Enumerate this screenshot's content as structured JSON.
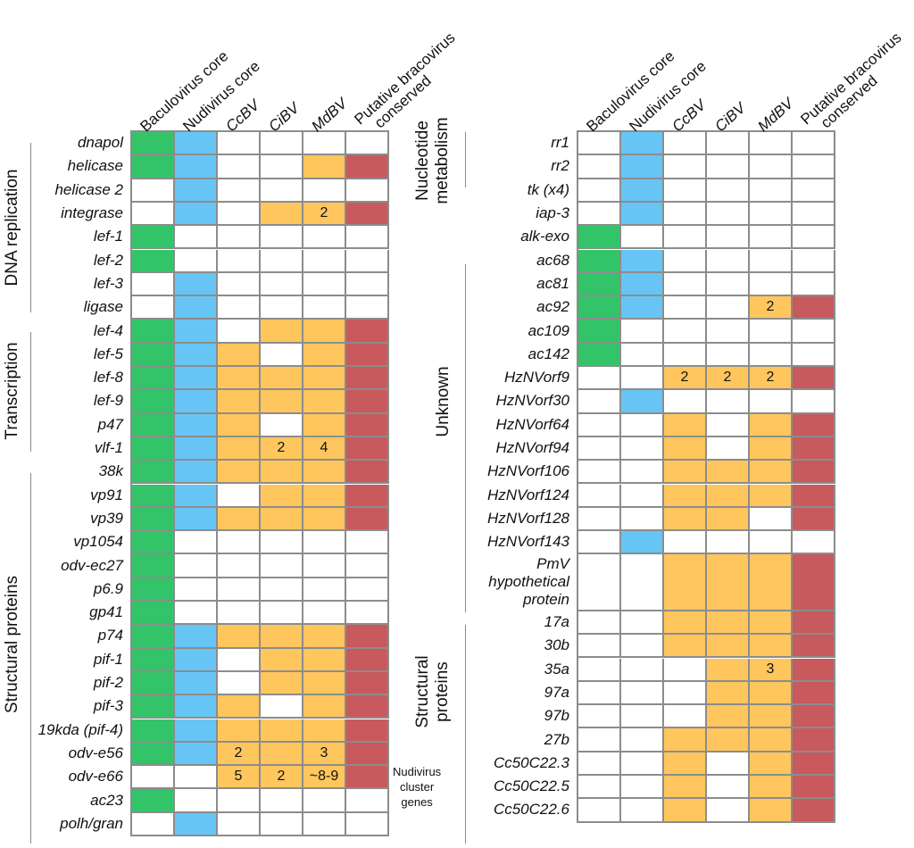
{
  "column_headers": [
    {
      "lines": [
        "Baculovirus core"
      ],
      "italic": false
    },
    {
      "lines": [
        "Nudivirus core"
      ],
      "italic": false
    },
    {
      "lines": [
        "CcBV"
      ],
      "italic": true
    },
    {
      "lines": [
        "CiBV"
      ],
      "italic": true
    },
    {
      "lines": [
        "MdBV"
      ],
      "italic": true
    },
    {
      "lines": [
        "Putative bracovirus",
        "conserved"
      ],
      "italic": false
    }
  ],
  "legend_colors": {
    "G": "#33c46a",
    "B": "#66c5f5",
    "O": "#ffc65e",
    "R": "#c85a5e",
    "W": "#ffffff"
  },
  "left_table": {
    "rows": [
      {
        "gene": "dnapol",
        "cells": [
          "G",
          "B",
          "W",
          "W",
          "W",
          "W"
        ],
        "labels": [
          "",
          "",
          "",
          "",
          "",
          ""
        ]
      },
      {
        "gene": "helicase",
        "cells": [
          "G",
          "B",
          "W",
          "W",
          "O",
          "R"
        ],
        "labels": [
          "",
          "",
          "",
          "",
          "",
          ""
        ]
      },
      {
        "gene": "helicase 2",
        "cells": [
          "W",
          "B",
          "W",
          "W",
          "W",
          "W"
        ],
        "labels": [
          "",
          "",
          "",
          "",
          "",
          ""
        ]
      },
      {
        "gene": "integrase",
        "cells": [
          "W",
          "B",
          "W",
          "O",
          "O",
          "R"
        ],
        "labels": [
          "",
          "",
          "",
          "",
          "2",
          ""
        ]
      },
      {
        "gene": "lef-1",
        "cells": [
          "G",
          "W",
          "W",
          "W",
          "W",
          "W"
        ],
        "labels": [
          "",
          "",
          "",
          "",
          "",
          ""
        ]
      },
      {
        "gene": "lef-2",
        "cells": [
          "G",
          "W",
          "W",
          "W",
          "W",
          "W"
        ],
        "labels": [
          "",
          "",
          "",
          "",
          "",
          ""
        ]
      },
      {
        "gene": "lef-3",
        "cells": [
          "W",
          "B",
          "W",
          "W",
          "W",
          "W"
        ],
        "labels": [
          "",
          "",
          "",
          "",
          "",
          ""
        ]
      },
      {
        "gene": "ligase",
        "cells": [
          "W",
          "B",
          "W",
          "W",
          "W",
          "W"
        ],
        "labels": [
          "",
          "",
          "",
          "",
          "",
          ""
        ]
      },
      {
        "gene": "lef-4",
        "cells": [
          "G",
          "B",
          "W",
          "O",
          "O",
          "R"
        ],
        "labels": [
          "",
          "",
          "",
          "",
          "",
          ""
        ]
      },
      {
        "gene": "lef-5",
        "cells": [
          "G",
          "B",
          "O",
          "W",
          "O",
          "R"
        ],
        "labels": [
          "",
          "",
          "",
          "",
          "",
          ""
        ]
      },
      {
        "gene": "lef-8",
        "cells": [
          "G",
          "B",
          "O",
          "O",
          "O",
          "R"
        ],
        "labels": [
          "",
          "",
          "",
          "",
          "",
          ""
        ]
      },
      {
        "gene": "lef-9",
        "cells": [
          "G",
          "B",
          "O",
          "O",
          "O",
          "R"
        ],
        "labels": [
          "",
          "",
          "",
          "",
          "",
          ""
        ]
      },
      {
        "gene": "p47",
        "cells": [
          "G",
          "B",
          "O",
          "W",
          "O",
          "R"
        ],
        "labels": [
          "",
          "",
          "",
          "",
          "",
          ""
        ]
      },
      {
        "gene": "vlf-1",
        "cells": [
          "G",
          "B",
          "O",
          "O",
          "O",
          "R"
        ],
        "labels": [
          "",
          "",
          "",
          "2",
          "4",
          ""
        ]
      },
      {
        "gene": "38k",
        "cells": [
          "G",
          "B",
          "O",
          "O",
          "O",
          "R"
        ],
        "labels": [
          "",
          "",
          "",
          "",
          "",
          ""
        ]
      },
      {
        "gene": "vp91",
        "cells": [
          "G",
          "B",
          "W",
          "O",
          "O",
          "R"
        ],
        "labels": [
          "",
          "",
          "",
          "",
          "",
          ""
        ]
      },
      {
        "gene": "vp39",
        "cells": [
          "G",
          "B",
          "O",
          "O",
          "O",
          "R"
        ],
        "labels": [
          "",
          "",
          "",
          "",
          "",
          ""
        ]
      },
      {
        "gene": "vp1054",
        "cells": [
          "G",
          "W",
          "W",
          "W",
          "W",
          "W"
        ],
        "labels": [
          "",
          "",
          "",
          "",
          "",
          ""
        ]
      },
      {
        "gene": "odv-ec27",
        "cells": [
          "G",
          "W",
          "W",
          "W",
          "W",
          "W"
        ],
        "labels": [
          "",
          "",
          "",
          "",
          "",
          ""
        ]
      },
      {
        "gene": "p6.9",
        "cells": [
          "G",
          "W",
          "W",
          "W",
          "W",
          "W"
        ],
        "labels": [
          "",
          "",
          "",
          "",
          "",
          ""
        ]
      },
      {
        "gene": "gp41",
        "cells": [
          "G",
          "W",
          "W",
          "W",
          "W",
          "W"
        ],
        "labels": [
          "",
          "",
          "",
          "",
          "",
          ""
        ]
      },
      {
        "gene": "p74",
        "cells": [
          "G",
          "B",
          "O",
          "O",
          "O",
          "R"
        ],
        "labels": [
          "",
          "",
          "",
          "",
          "",
          ""
        ]
      },
      {
        "gene": "pif-1",
        "cells": [
          "G",
          "B",
          "W",
          "O",
          "O",
          "R"
        ],
        "labels": [
          "",
          "",
          "",
          "",
          "",
          ""
        ]
      },
      {
        "gene": "pif-2",
        "cells": [
          "G",
          "B",
          "W",
          "O",
          "O",
          "R"
        ],
        "labels": [
          "",
          "",
          "",
          "",
          "",
          ""
        ]
      },
      {
        "gene": "pif-3",
        "cells": [
          "G",
          "B",
          "O",
          "W",
          "O",
          "R"
        ],
        "labels": [
          "",
          "",
          "",
          "",
          "",
          ""
        ]
      },
      {
        "gene": "19kda (pif-4)",
        "cells": [
          "G",
          "B",
          "O",
          "O",
          "O",
          "R"
        ],
        "labels": [
          "",
          "",
          "",
          "",
          "",
          ""
        ]
      },
      {
        "gene": "odv-e56",
        "cells": [
          "G",
          "B",
          "O",
          "O",
          "O",
          "R"
        ],
        "labels": [
          "",
          "",
          "2",
          "",
          "3",
          ""
        ]
      },
      {
        "gene": "odv-e66",
        "cells": [
          "W",
          "W",
          "O",
          "O",
          "O",
          "R"
        ],
        "labels": [
          "",
          "",
          "5",
          "2",
          "~8-9",
          ""
        ]
      },
      {
        "gene": "ac23",
        "cells": [
          "G",
          "W",
          "W",
          "W",
          "W",
          "W"
        ],
        "labels": [
          "",
          "",
          "",
          "",
          "",
          ""
        ]
      },
      {
        "gene": "polh/gran",
        "cells": [
          "W",
          "B",
          "W",
          "W",
          "W",
          "W"
        ],
        "labels": [
          "",
          "",
          "",
          "",
          "",
          ""
        ]
      }
    ],
    "groups": [
      {
        "name": "DNA replication",
        "lines": [
          "DNA replication"
        ]
      },
      {
        "name": "Transcription",
        "lines": [
          "Transcription"
        ]
      },
      {
        "name": "Structural proteins",
        "lines": [
          "Structural proteins"
        ]
      }
    ]
  },
  "right_table": {
    "rows": [
      {
        "gene": "rr1",
        "cells": [
          "W",
          "B",
          "W",
          "W",
          "W",
          "W"
        ],
        "labels": [
          "",
          "",
          "",
          "",
          "",
          ""
        ]
      },
      {
        "gene": "rr2",
        "cells": [
          "W",
          "B",
          "W",
          "W",
          "W",
          "W"
        ],
        "labels": [
          "",
          "",
          "",
          "",
          "",
          ""
        ]
      },
      {
        "gene": "tk (x4)",
        "cells": [
          "W",
          "B",
          "W",
          "W",
          "W",
          "W"
        ],
        "labels": [
          "",
          "",
          "",
          "",
          "",
          ""
        ]
      },
      {
        "gene": "iap-3",
        "cells": [
          "W",
          "B",
          "W",
          "W",
          "W",
          "W"
        ],
        "labels": [
          "",
          "",
          "",
          "",
          "",
          ""
        ]
      },
      {
        "gene": "alk-exo",
        "cells": [
          "G",
          "W",
          "W",
          "W",
          "W",
          "W"
        ],
        "labels": [
          "",
          "",
          "",
          "",
          "",
          ""
        ]
      },
      {
        "gene": "ac68",
        "cells": [
          "G",
          "B",
          "W",
          "W",
          "W",
          "W"
        ],
        "labels": [
          "",
          "",
          "",
          "",
          "",
          ""
        ]
      },
      {
        "gene": "ac81",
        "cells": [
          "G",
          "B",
          "W",
          "W",
          "W",
          "W"
        ],
        "labels": [
          "",
          "",
          "",
          "",
          "",
          ""
        ]
      },
      {
        "gene": "ac92",
        "cells": [
          "G",
          "B",
          "W",
          "W",
          "O",
          "R"
        ],
        "labels": [
          "",
          "",
          "",
          "",
          "2",
          ""
        ]
      },
      {
        "gene": "ac109",
        "cells": [
          "G",
          "W",
          "W",
          "W",
          "W",
          "W"
        ],
        "labels": [
          "",
          "",
          "",
          "",
          "",
          ""
        ]
      },
      {
        "gene": "ac142",
        "cells": [
          "G",
          "W",
          "W",
          "W",
          "W",
          "W"
        ],
        "labels": [
          "",
          "",
          "",
          "",
          "",
          ""
        ]
      },
      {
        "gene": "HzNVorf9",
        "cells": [
          "W",
          "W",
          "O",
          "O",
          "O",
          "R"
        ],
        "labels": [
          "",
          "",
          "2",
          "2",
          "2",
          ""
        ]
      },
      {
        "gene": "HzNVorf30",
        "cells": [
          "W",
          "B",
          "W",
          "W",
          "W",
          "W"
        ],
        "labels": [
          "",
          "",
          "",
          "",
          "",
          ""
        ]
      },
      {
        "gene": "HzNVorf64",
        "cells": [
          "W",
          "W",
          "O",
          "W",
          "O",
          "R"
        ],
        "labels": [
          "",
          "",
          "",
          "",
          "",
          ""
        ]
      },
      {
        "gene": "HzNVorf94",
        "cells": [
          "W",
          "W",
          "O",
          "W",
          "O",
          "R"
        ],
        "labels": [
          "",
          "",
          "",
          "",
          "",
          ""
        ]
      },
      {
        "gene": "HzNVorf106",
        "cells": [
          "W",
          "W",
          "O",
          "O",
          "O",
          "R"
        ],
        "labels": [
          "",
          "",
          "",
          "",
          "",
          ""
        ]
      },
      {
        "gene": "HzNVorf124",
        "cells": [
          "W",
          "W",
          "O",
          "O",
          "O",
          "R"
        ],
        "labels": [
          "",
          "",
          "",
          "",
          "",
          ""
        ]
      },
      {
        "gene": "HzNVorf128",
        "cells": [
          "W",
          "W",
          "O",
          "O",
          "W",
          "R"
        ],
        "labels": [
          "",
          "",
          "",
          "",
          "",
          ""
        ]
      },
      {
        "gene": "HzNVorf143",
        "cells": [
          "W",
          "B",
          "W",
          "W",
          "W",
          "W"
        ],
        "labels": [
          "",
          "",
          "",
          "",
          "",
          ""
        ]
      },
      {
        "gene": "PmV hypothetical protein",
        "display": [
          "PmV",
          "hypothetical",
          "protein"
        ],
        "tall": true,
        "cells": [
          "W",
          "W",
          "O",
          "O",
          "O",
          "R"
        ],
        "labels": [
          "",
          "",
          "",
          "",
          "",
          ""
        ]
      },
      {
        "gene": "17a",
        "cells": [
          "W",
          "W",
          "O",
          "O",
          "O",
          "R"
        ],
        "labels": [
          "",
          "",
          "",
          "",
          "",
          ""
        ]
      },
      {
        "gene": "30b",
        "cells": [
          "W",
          "W",
          "O",
          "O",
          "O",
          "R"
        ],
        "labels": [
          "",
          "",
          "",
          "",
          "",
          ""
        ]
      },
      {
        "gene": "35a",
        "cells": [
          "W",
          "W",
          "W",
          "O",
          "O",
          "R"
        ],
        "labels": [
          "",
          "",
          "",
          "",
          "3",
          ""
        ]
      },
      {
        "gene": "97a",
        "cells": [
          "W",
          "W",
          "W",
          "O",
          "O",
          "R"
        ],
        "labels": [
          "",
          "",
          "",
          "",
          "",
          ""
        ]
      },
      {
        "gene": "97b",
        "cells": [
          "W",
          "W",
          "W",
          "O",
          "O",
          "R"
        ],
        "labels": [
          "",
          "",
          "",
          "",
          "",
          ""
        ]
      },
      {
        "gene": "27b",
        "cells": [
          "W",
          "W",
          "O",
          "O",
          "O",
          "R"
        ],
        "labels": [
          "",
          "",
          "",
          "",
          "",
          ""
        ]
      },
      {
        "gene": "Cc50C22.3",
        "cells": [
          "W",
          "W",
          "O",
          "W",
          "O",
          "R"
        ],
        "labels": [
          "",
          "",
          "",
          "",
          "",
          ""
        ]
      },
      {
        "gene": "Cc50C22.5",
        "cells": [
          "W",
          "W",
          "O",
          "W",
          "O",
          "R"
        ],
        "labels": [
          "",
          "",
          "",
          "",
          "",
          ""
        ]
      },
      {
        "gene": "Cc50C22.6",
        "cells": [
          "W",
          "W",
          "O",
          "W",
          "O",
          "R"
        ],
        "labels": [
          "",
          "",
          "",
          "",
          "",
          ""
        ]
      }
    ],
    "groups": [
      {
        "name": "Nucleotide metabolism",
        "lines": [
          "Nucleotide",
          "metabolism"
        ]
      },
      {
        "name": "Unknown",
        "lines": [
          "Unknown"
        ]
      },
      {
        "name": "Structural proteins",
        "lines": [
          "Structural",
          "proteins"
        ]
      },
      {
        "name": "Nudivirus cluster genes",
        "lines": [
          "Nudivirus",
          "cluster",
          "genes"
        ]
      }
    ]
  }
}
